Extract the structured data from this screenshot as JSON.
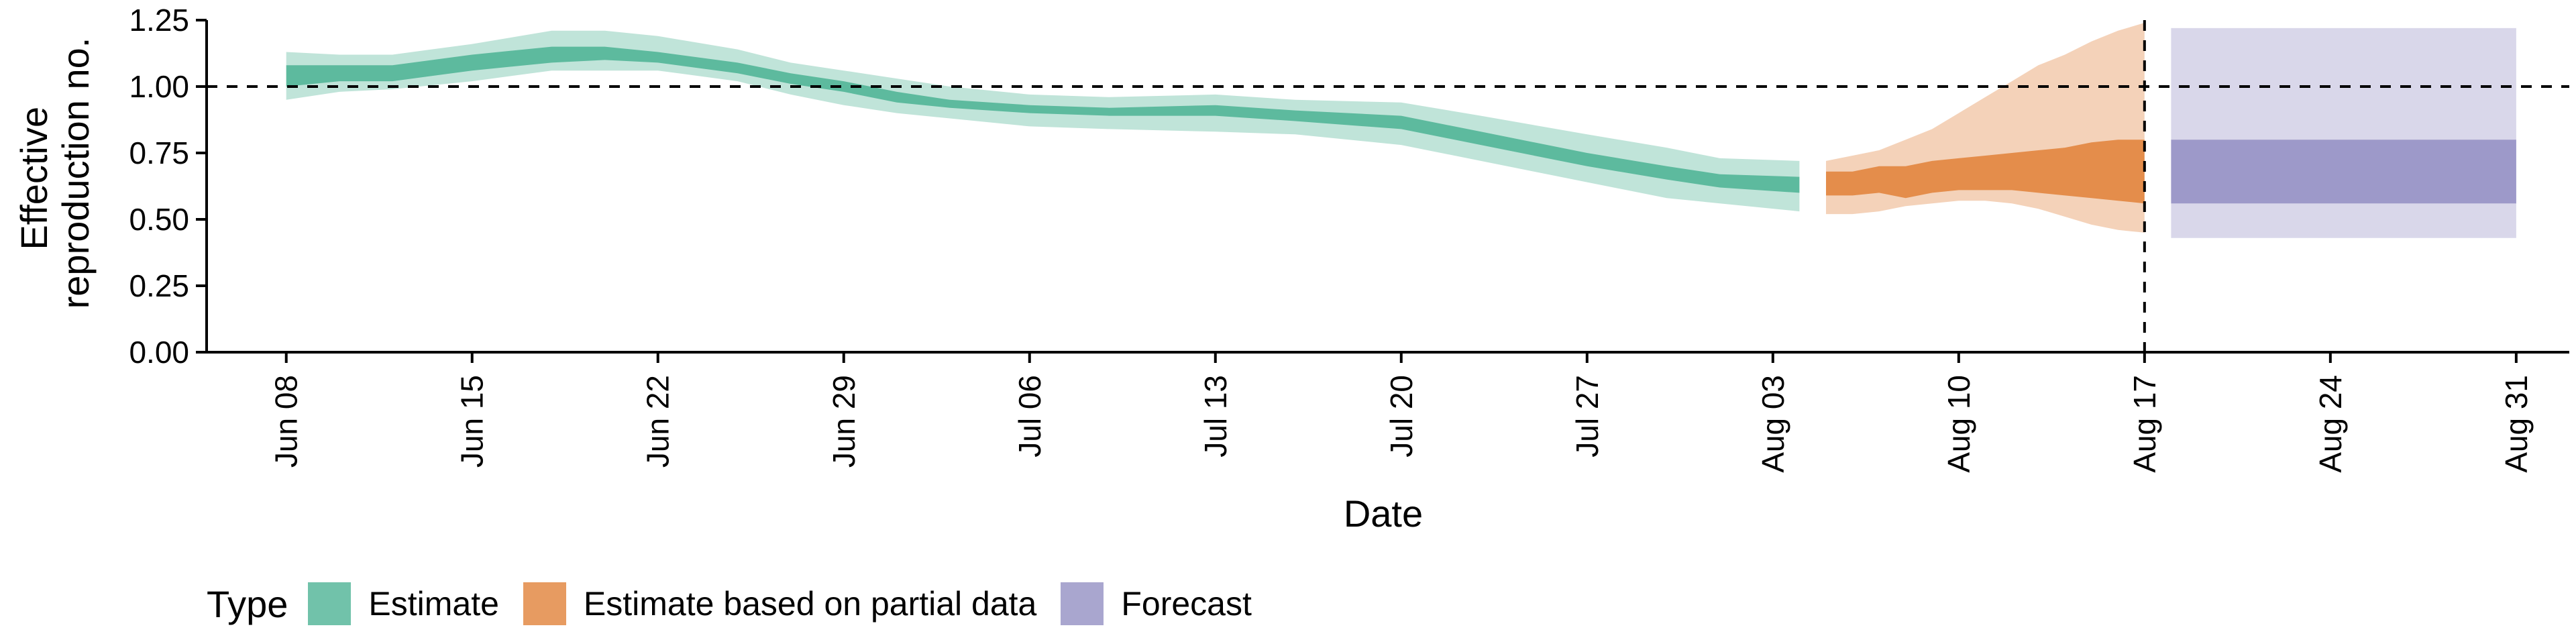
{
  "chart_data": {
    "type": "area",
    "title": "",
    "xlabel": "Date",
    "ylabel_lines": [
      "Effective",
      "reproduction no."
    ],
    "ylim": [
      0,
      1.25
    ],
    "yticks": [
      0,
      0.25,
      0.5,
      0.75,
      1.0,
      1.25
    ],
    "ytick_labels": [
      "0.00",
      "0.25",
      "0.50",
      "0.75",
      "1.00",
      "1.25"
    ],
    "xlim": [
      "2020-06-05",
      "2020-09-02"
    ],
    "xticks": [
      "2020-06-08",
      "2020-06-15",
      "2020-06-22",
      "2020-06-29",
      "2020-07-06",
      "2020-07-13",
      "2020-07-20",
      "2020-07-27",
      "2020-08-03",
      "2020-08-10",
      "2020-08-17",
      "2020-08-24",
      "2020-08-31"
    ],
    "xtick_labels": [
      "Jun 08",
      "Jun 15",
      "Jun 22",
      "Jun 29",
      "Jul 06",
      "Jul 13",
      "Jul 20",
      "Jul 27",
      "Aug 03",
      "Aug 10",
      "Aug 17",
      "Aug 24",
      "Aug 31"
    ],
    "reference_lines": {
      "horizontal_y": 1.0,
      "vertical_x": "2020-08-17",
      "style": "dashed"
    },
    "legend": {
      "title": "Type",
      "position": "bottom-left"
    },
    "series": [
      {
        "name": "Estimate",
        "color": "#1b9e77",
        "x": [
          "2020-06-08",
          "2020-06-10",
          "2020-06-12",
          "2020-06-15",
          "2020-06-18",
          "2020-06-20",
          "2020-06-22",
          "2020-06-25",
          "2020-06-27",
          "2020-06-29",
          "2020-07-01",
          "2020-07-03",
          "2020-07-06",
          "2020-07-09",
          "2020-07-13",
          "2020-07-16",
          "2020-07-20",
          "2020-07-23",
          "2020-07-27",
          "2020-07-30",
          "2020-08-01",
          "2020-08-04"
        ],
        "ci90_low": [
          0.95,
          0.98,
          0.99,
          1.02,
          1.06,
          1.06,
          1.06,
          1.02,
          0.97,
          0.93,
          0.9,
          0.88,
          0.85,
          0.84,
          0.83,
          0.82,
          0.78,
          0.72,
          0.64,
          0.58,
          0.56,
          0.53
        ],
        "ci50_low": [
          1.0,
          1.02,
          1.02,
          1.06,
          1.09,
          1.1,
          1.09,
          1.05,
          1.01,
          0.98,
          0.94,
          0.92,
          0.9,
          0.89,
          0.89,
          0.87,
          0.84,
          0.78,
          0.7,
          0.65,
          0.62,
          0.6
        ],
        "ci50_high": [
          1.08,
          1.08,
          1.08,
          1.12,
          1.15,
          1.15,
          1.13,
          1.09,
          1.05,
          1.02,
          0.98,
          0.95,
          0.93,
          0.92,
          0.93,
          0.91,
          0.89,
          0.83,
          0.75,
          0.7,
          0.67,
          0.66
        ],
        "ci90_high": [
          1.13,
          1.12,
          1.12,
          1.16,
          1.21,
          1.21,
          1.19,
          1.14,
          1.09,
          1.06,
          1.03,
          1.0,
          0.97,
          0.96,
          0.97,
          0.95,
          0.94,
          0.89,
          0.82,
          0.77,
          0.73,
          0.72
        ]
      },
      {
        "name": "Estimate based on partial data",
        "color": "#d95f02",
        "x": [
          "2020-08-05",
          "2020-08-06",
          "2020-08-07",
          "2020-08-08",
          "2020-08-09",
          "2020-08-10",
          "2020-08-11",
          "2020-08-12",
          "2020-08-13",
          "2020-08-14",
          "2020-08-15",
          "2020-08-16",
          "2020-08-17"
        ],
        "ci90_low": [
          0.52,
          0.52,
          0.53,
          0.55,
          0.56,
          0.57,
          0.57,
          0.56,
          0.54,
          0.51,
          0.48,
          0.46,
          0.45
        ],
        "ci50_low": [
          0.59,
          0.59,
          0.6,
          0.58,
          0.6,
          0.61,
          0.61,
          0.61,
          0.6,
          0.59,
          0.58,
          0.57,
          0.56
        ],
        "ci50_high": [
          0.68,
          0.68,
          0.7,
          0.7,
          0.72,
          0.73,
          0.74,
          0.75,
          0.76,
          0.77,
          0.79,
          0.8,
          0.8
        ],
        "ci90_high": [
          0.72,
          0.74,
          0.76,
          0.8,
          0.84,
          0.9,
          0.96,
          1.02,
          1.08,
          1.12,
          1.17,
          1.21,
          1.24
        ]
      },
      {
        "name": "Forecast",
        "color": "#7570b3",
        "x": [
          "2020-08-18",
          "2020-08-31"
        ],
        "ci90_low": [
          0.43,
          0.43
        ],
        "ci50_low": [
          0.56,
          0.56
        ],
        "ci50_high": [
          0.8,
          0.8
        ],
        "ci90_high": [
          1.22,
          1.22
        ]
      }
    ]
  }
}
